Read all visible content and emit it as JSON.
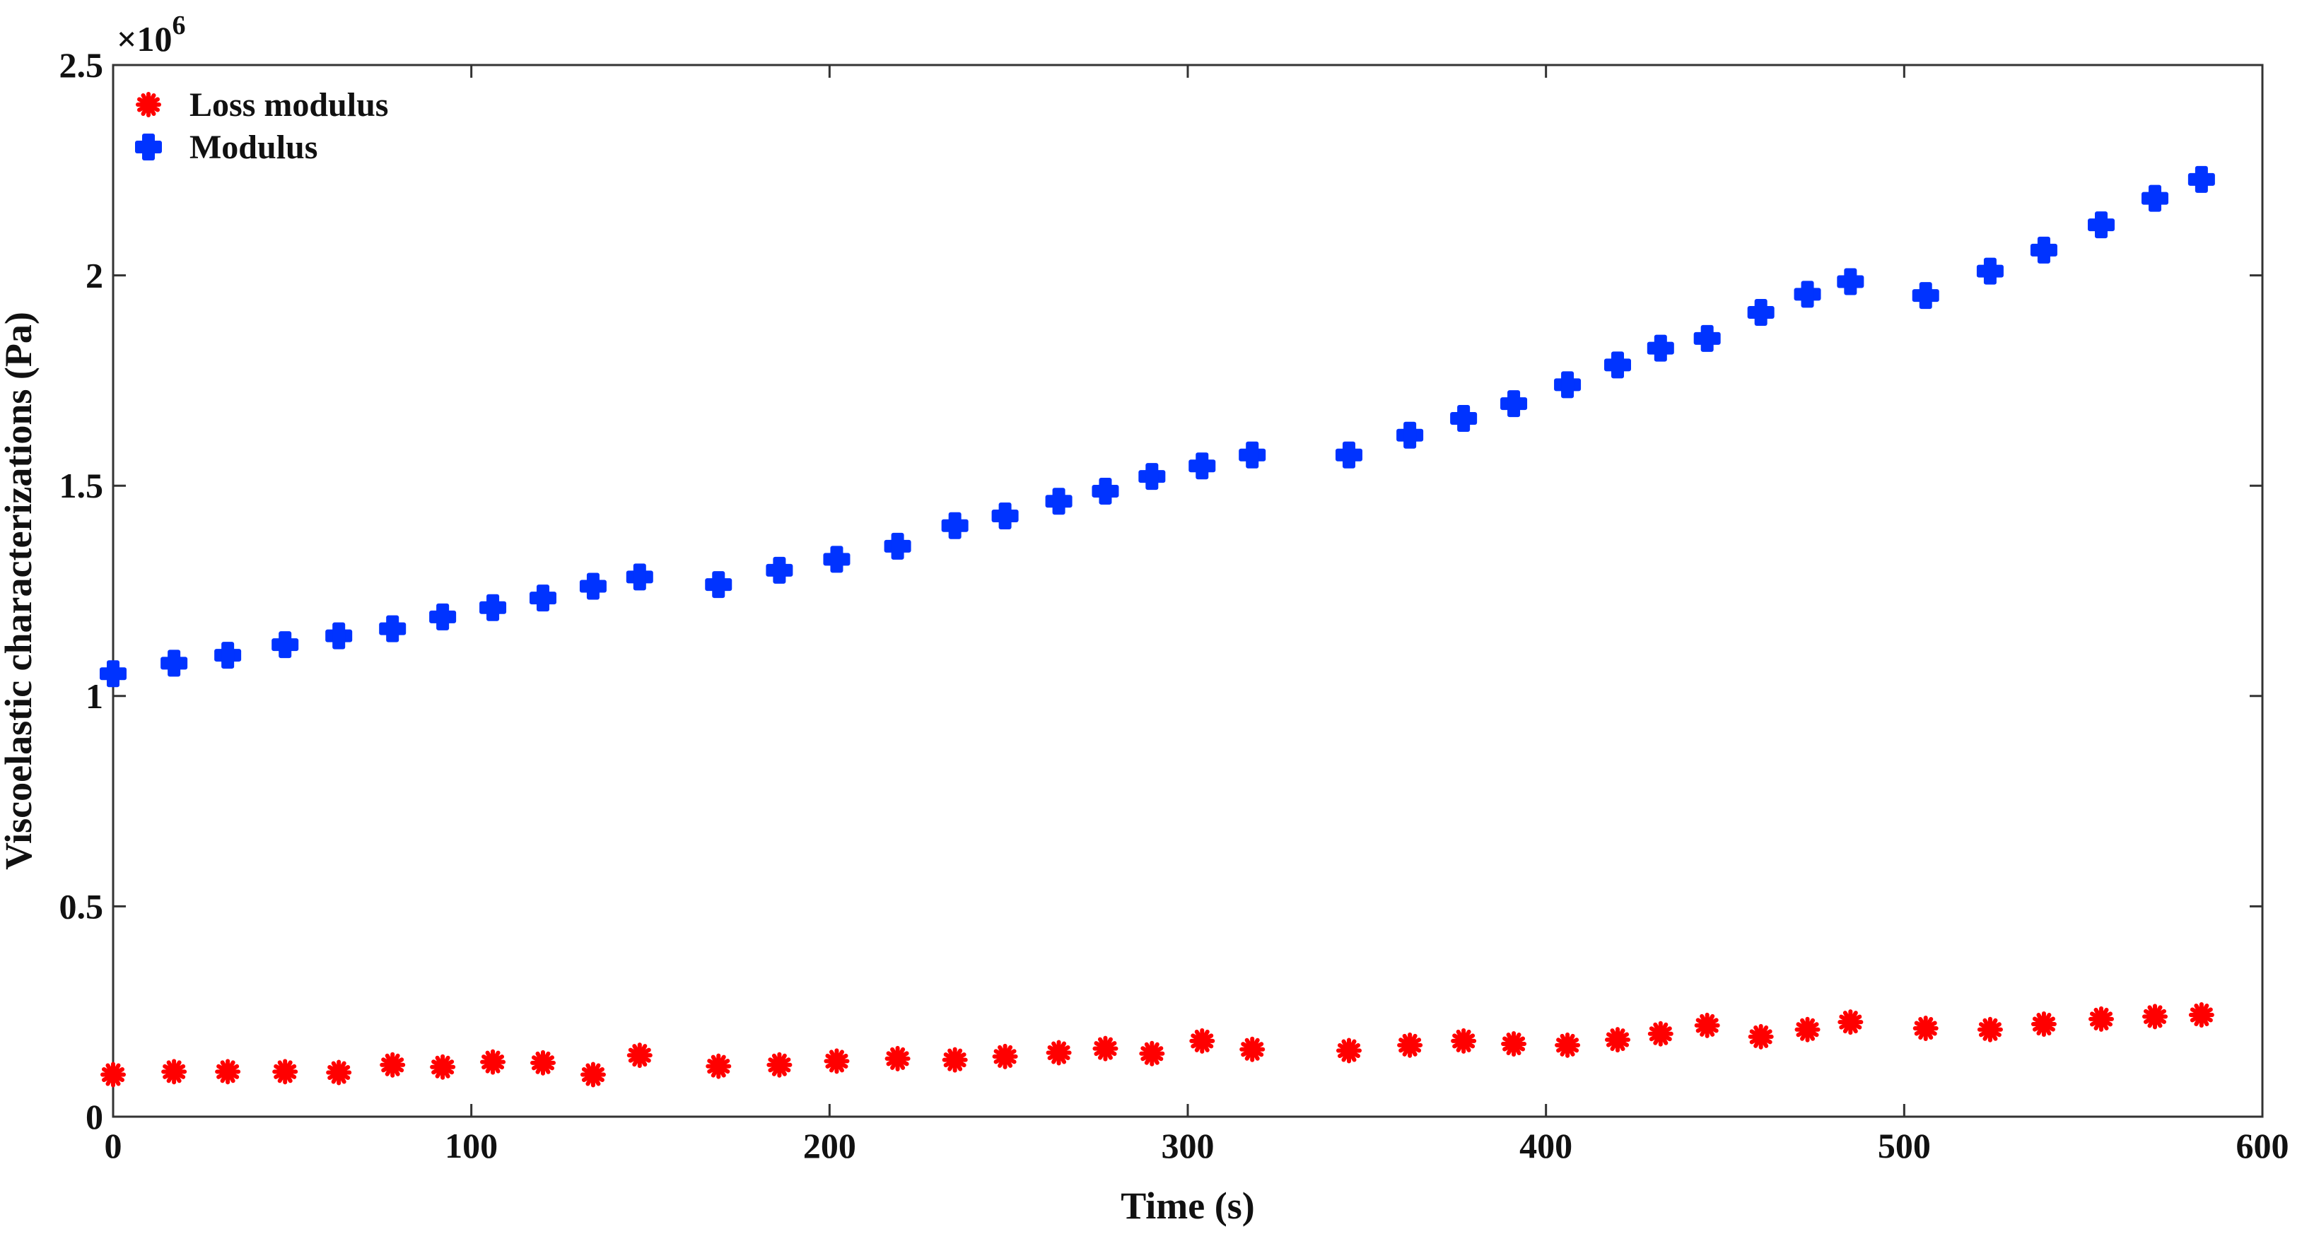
{
  "chart_data": {
    "type": "scatter",
    "xlabel": "Time (s)",
    "ylabel": "Viscoelastic characterizations (Pa)",
    "y_multiplier_label": "×10",
    "y_multiplier_exponent": "6",
    "xlim": [
      0,
      600
    ],
    "ylim": [
      0,
      2.5
    ],
    "x_ticks": [
      0,
      100,
      200,
      300,
      400,
      500,
      600
    ],
    "y_ticks": [
      0,
      0.5,
      1,
      1.5,
      2,
      2.5
    ],
    "x_tick_labels": [
      "0",
      "100",
      "200",
      "300",
      "400",
      "500",
      "600"
    ],
    "y_tick_labels": [
      "0",
      "0.5",
      "1",
      "1.5",
      "2",
      "2.5"
    ],
    "grid": false,
    "legend_position": "top-left",
    "series": [
      {
        "name": "Loss modulus",
        "color": "#ff0000",
        "marker": "asterisk",
        "points": [
          [
            0,
            0.1
          ],
          [
            17,
            0.107
          ],
          [
            32,
            0.107
          ],
          [
            48,
            0.107
          ],
          [
            63,
            0.105
          ],
          [
            78,
            0.123
          ],
          [
            92,
            0.118
          ],
          [
            106,
            0.13
          ],
          [
            120,
            0.128
          ],
          [
            134,
            0.1
          ],
          [
            147,
            0.146
          ],
          [
            169,
            0.12
          ],
          [
            186,
            0.123
          ],
          [
            202,
            0.132
          ],
          [
            219,
            0.138
          ],
          [
            235,
            0.135
          ],
          [
            249,
            0.143
          ],
          [
            264,
            0.152
          ],
          [
            277,
            0.162
          ],
          [
            290,
            0.15
          ],
          [
            304,
            0.18
          ],
          [
            318,
            0.16
          ],
          [
            345,
            0.157
          ],
          [
            362,
            0.17
          ],
          [
            377,
            0.18
          ],
          [
            391,
            0.173
          ],
          [
            406,
            0.17
          ],
          [
            420,
            0.183
          ],
          [
            432,
            0.197
          ],
          [
            445,
            0.217
          ],
          [
            460,
            0.19
          ],
          [
            473,
            0.207
          ],
          [
            485,
            0.225
          ],
          [
            506,
            0.21
          ],
          [
            524,
            0.207
          ],
          [
            539,
            0.22
          ],
          [
            555,
            0.232
          ],
          [
            570,
            0.238
          ],
          [
            583,
            0.242
          ]
        ]
      },
      {
        "name": "Modulus",
        "color": "#0033ff",
        "marker": "plus",
        "points": [
          [
            0,
            1.053
          ],
          [
            17,
            1.078
          ],
          [
            32,
            1.097
          ],
          [
            48,
            1.122
          ],
          [
            63,
            1.143
          ],
          [
            78,
            1.16
          ],
          [
            92,
            1.188
          ],
          [
            106,
            1.21
          ],
          [
            120,
            1.233
          ],
          [
            134,
            1.261
          ],
          [
            147,
            1.283
          ],
          [
            169,
            1.265
          ],
          [
            186,
            1.299
          ],
          [
            202,
            1.325
          ],
          [
            219,
            1.356
          ],
          [
            235,
            1.405
          ],
          [
            249,
            1.428
          ],
          [
            264,
            1.463
          ],
          [
            277,
            1.487
          ],
          [
            290,
            1.522
          ],
          [
            304,
            1.547
          ],
          [
            318,
            1.573
          ],
          [
            345,
            1.573
          ],
          [
            362,
            1.62
          ],
          [
            377,
            1.66
          ],
          [
            391,
            1.695
          ],
          [
            406,
            1.74
          ],
          [
            420,
            1.787
          ],
          [
            432,
            1.827
          ],
          [
            445,
            1.85
          ],
          [
            460,
            1.912
          ],
          [
            473,
            1.955
          ],
          [
            485,
            1.985
          ],
          [
            506,
            1.952
          ],
          [
            524,
            2.01
          ],
          [
            539,
            2.06
          ],
          [
            555,
            2.12
          ],
          [
            570,
            2.183
          ],
          [
            583,
            2.228
          ]
        ]
      }
    ]
  }
}
